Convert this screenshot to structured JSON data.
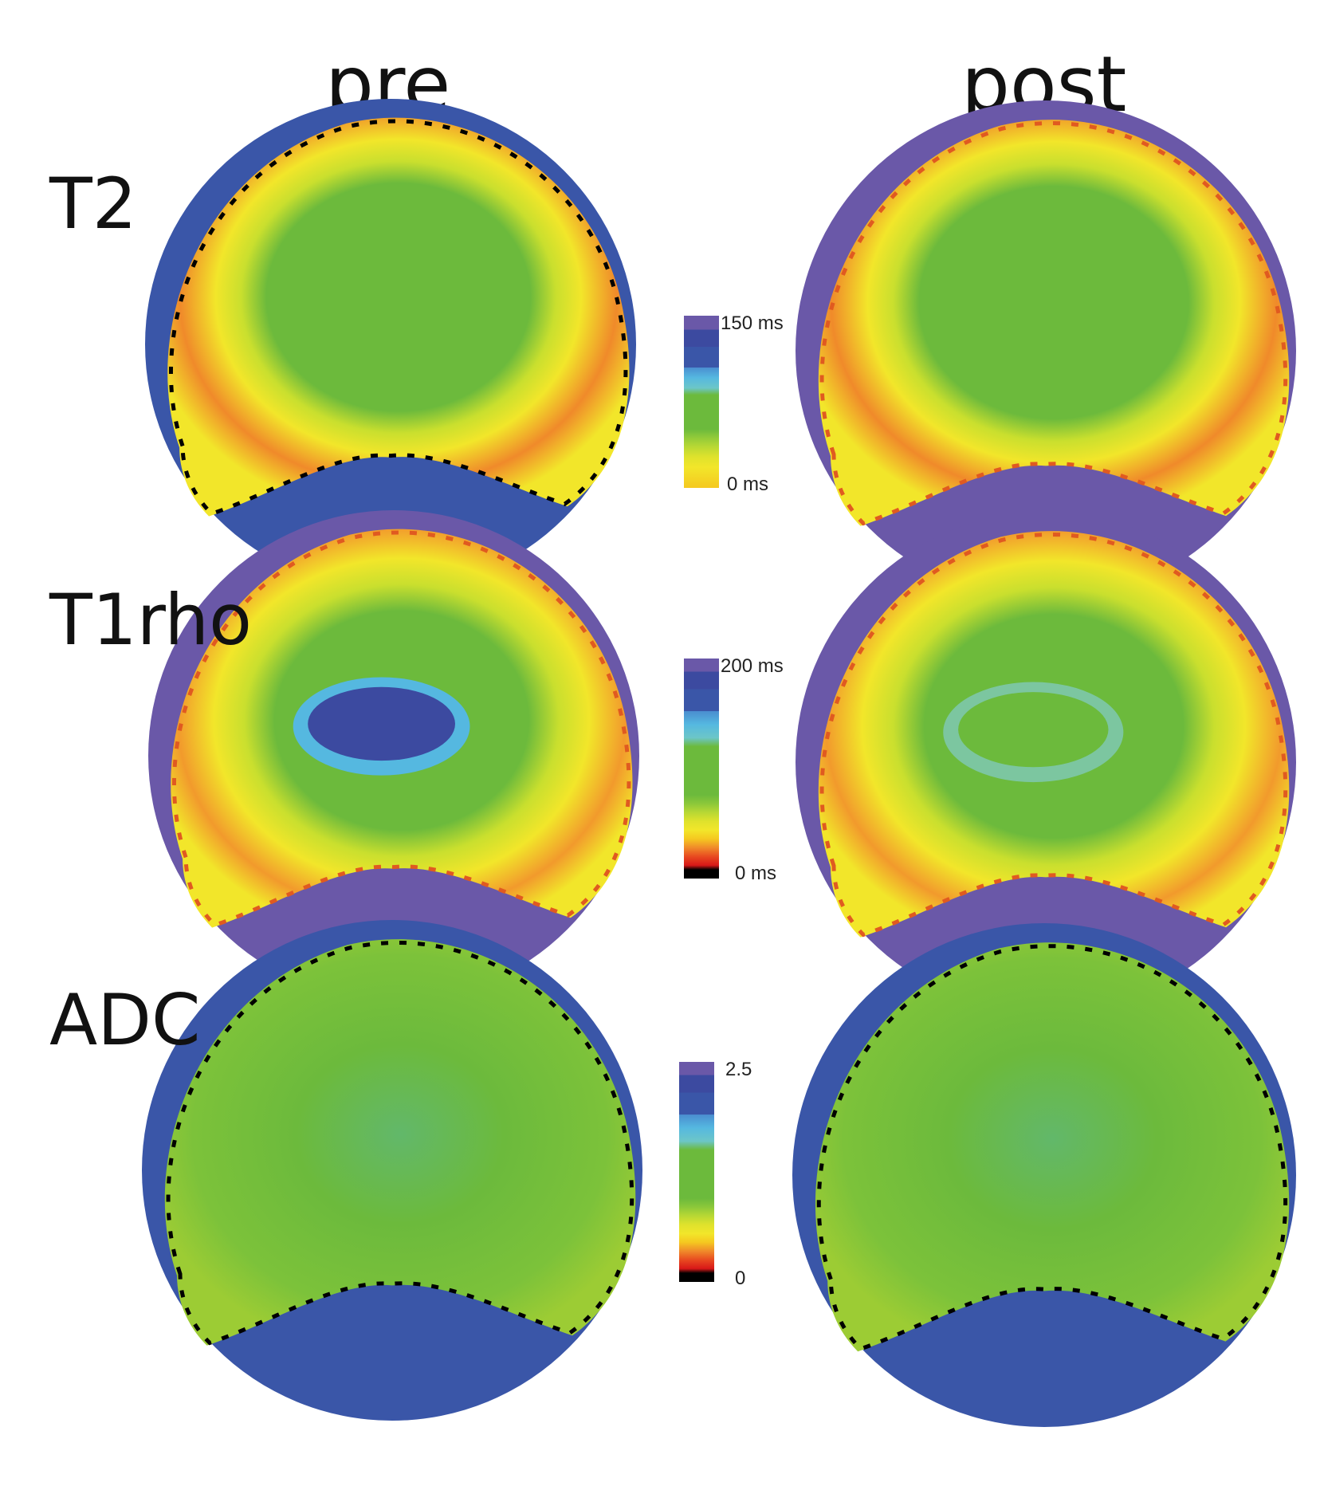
{
  "columns": {
    "pre": "pre",
    "post": "post"
  },
  "rows": {
    "t2": "T2",
    "t1rho": "T1rho",
    "adc": "ADC"
  },
  "colorbars": {
    "t2": {
      "max": "150 ms",
      "min": "0 ms"
    },
    "t1rho": {
      "max": "200 ms",
      "min": "0 ms"
    },
    "adc": {
      "max": "2.5",
      "min": "0"
    }
  },
  "colors": {
    "background_purple": "#6a58a8",
    "background_blue": "#3a56a8",
    "green": "#6cba3c",
    "yellow": "#f2e62a",
    "orange": "#f08a2a",
    "cyan": "#55b8e0",
    "dark_blue": "#3c4aa0",
    "black": "#000000"
  }
}
